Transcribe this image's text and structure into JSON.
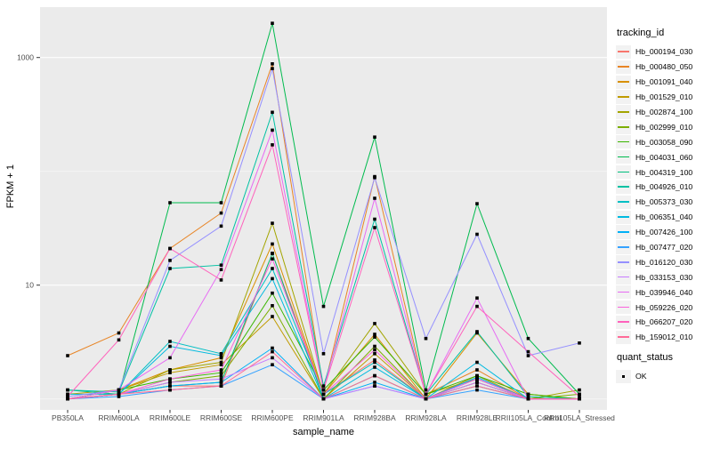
{
  "chart_data": {
    "type": "line",
    "title": "",
    "xlabel": "sample_name",
    "ylabel": "FPKM + 1",
    "y_scale": "log10",
    "ylim": [
      1,
      2800
    ],
    "grid": "major and minor horizontal white gridlines on grey panel",
    "panel_bg": "#EBEBEB",
    "gridline_color": "#FFFFFF",
    "point_color": "#000000",
    "axis_text_color": "#4D4D4D",
    "y_axis_ticks": [
      {
        "label": "10",
        "value": 10
      },
      {
        "label": "1000",
        "value": 1000
      }
    ],
    "y_minor_gridlines": [
      1,
      100
    ],
    "categories": [
      "PB350LA",
      "RRIM600LA",
      "RRIM600LE",
      "RRIM600SE",
      "RRIM600PE",
      "RRIM901LA",
      "RRIM928BA",
      "RRIM928LA",
      "RRIM928LE",
      "RRII105LA_Control",
      "RRII105LA_Stressed"
    ],
    "legend": {
      "title": "tracking_id",
      "position": "right"
    },
    "legend2": {
      "title": "quant_status",
      "items": [
        {
          "label": "OK",
          "marker": "black-point"
        }
      ]
    },
    "series": [
      {
        "name": "Hb_000194_030",
        "color": "#F8766D",
        "values": [
          1.0,
          1.1,
          1.3,
          1.3,
          19,
          1.1,
          2.2,
          1.0,
          1.4,
          1.0,
          1.0
        ]
      },
      {
        "name": "Hb_000480_050",
        "color": "#E88526",
        "values": [
          2.4,
          3.8,
          21,
          43,
          880,
          1.2,
          90,
          1.1,
          1.8,
          1.0,
          1.0
        ]
      },
      {
        "name": "Hb_001091_040",
        "color": "#D89000",
        "values": [
          1.0,
          1.2,
          1.8,
          2.3,
          23,
          1.1,
          3.7,
          1.0,
          3.8,
          1.1,
          1.0
        ]
      },
      {
        "name": "Hb_001529_010",
        "color": "#C09B00",
        "values": [
          1.1,
          1.2,
          1.7,
          2.0,
          5.3,
          1.0,
          2.5,
          1.0,
          1.6,
          1.0,
          1.0
        ]
      },
      {
        "name": "Hb_002874_100",
        "color": "#A3A500",
        "values": [
          1.0,
          1.1,
          1.8,
          2.1,
          35,
          1.1,
          4.6,
          1.1,
          1.5,
          1.0,
          1.2
        ]
      },
      {
        "name": "Hb_002999_010",
        "color": "#7CAE00",
        "values": [
          1.0,
          1.1,
          1.4,
          1.6,
          6.6,
          1.0,
          2.9,
          1.0,
          1.4,
          1.0,
          1.1
        ]
      },
      {
        "name": "Hb_003058_090",
        "color": "#39B600",
        "values": [
          1.0,
          1.2,
          1.5,
          1.7,
          8.5,
          1.2,
          3.5,
          1.1,
          1.6,
          1.1,
          1.0
        ]
      },
      {
        "name": "Hb_004031_060",
        "color": "#00BB4E",
        "values": [
          1.0,
          1.1,
          53,
          53,
          2000,
          6.5,
          200,
          1.2,
          52,
          3.4,
          1.1
        ]
      },
      {
        "name": "Hb_004319_100",
        "color": "#00BF7D",
        "values": [
          1.2,
          1.1,
          1.3,
          1.4,
          19,
          1.0,
          1.6,
          1.0,
          1.3,
          1.0,
          1.0
        ]
      },
      {
        "name": "Hb_004926_010",
        "color": "#00C1A3",
        "values": [
          1.2,
          1.15,
          14,
          15,
          330,
          1.3,
          38,
          1.1,
          3.9,
          1.05,
          1.0
        ]
      },
      {
        "name": "Hb_005373_030",
        "color": "#00BFC4",
        "values": [
          1.1,
          1.1,
          3.2,
          2.5,
          14,
          1.1,
          2.1,
          1.0,
          1.5,
          1.0,
          1.0
        ]
      },
      {
        "name": "Hb_006351_040",
        "color": "#00BAE0",
        "values": [
          1.0,
          1.1,
          2.9,
          2.4,
          11.4,
          1.0,
          1.9,
          1.0,
          2.1,
          1.0,
          1.0
        ]
      },
      {
        "name": "Hb_007426_100",
        "color": "#00B0F6",
        "values": [
          1.0,
          1.1,
          1.3,
          1.4,
          2.8,
          1.0,
          1.4,
          1.0,
          1.55,
          1.0,
          1.0
        ]
      },
      {
        "name": "Hb_007477_020",
        "color": "#35A2FF",
        "values": [
          1.0,
          1.05,
          1.2,
          1.3,
          2.0,
          1.0,
          1.3,
          1.0,
          1.2,
          1.0,
          1.0
        ]
      },
      {
        "name": "Hb_016120_030",
        "color": "#9590FF",
        "values": [
          1.05,
          1.2,
          16.5,
          33,
          800,
          2.5,
          88,
          3.4,
          28,
          2.4,
          3.1
        ]
      },
      {
        "name": "Hb_033153_030",
        "color": "#C77CFF",
        "values": [
          1.0,
          1.1,
          1.4,
          1.5,
          2.3,
          1.0,
          1.3,
          1.0,
          1.4,
          1.0,
          1.0
        ]
      },
      {
        "name": "Hb_039946_040",
        "color": "#E76BF3",
        "values": [
          1.0,
          1.2,
          2.3,
          13.7,
          230,
          1.2,
          58,
          1.1,
          7.7,
          1.0,
          1.0
        ]
      },
      {
        "name": "Hb_059226_020",
        "color": "#FA62DB",
        "values": [
          1.0,
          1.1,
          1.5,
          1.8,
          17,
          1.1,
          2.7,
          1.0,
          1.5,
          1.0,
          1.0
        ]
      },
      {
        "name": "Hb_066207_020",
        "color": "#FF62BC",
        "values": [
          1.05,
          3.3,
          21,
          11.1,
          171,
          1.2,
          32,
          1.1,
          6.5,
          2.6,
          1.05
        ]
      },
      {
        "name": "Hb_159012_010",
        "color": "#FF6A98",
        "values": [
          1.0,
          1.1,
          1.2,
          1.3,
          2.6,
          1.0,
          1.6,
          1.0,
          1.3,
          1.0,
          1.0
        ]
      }
    ]
  }
}
